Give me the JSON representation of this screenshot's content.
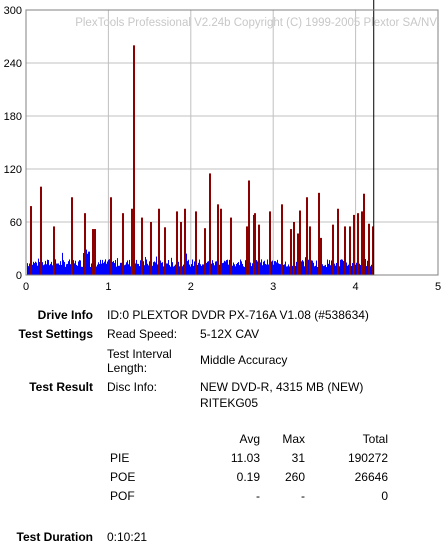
{
  "chart_data": {
    "type": "bar",
    "watermark": "PlexTools Professional V2.24b Copyright (C) 1999-2005 Plextor SA/NV",
    "xlim": [
      0,
      5
    ],
    "ylim": [
      0,
      300
    ],
    "x_ticks": [
      "0",
      "1",
      "2",
      "3",
      "4",
      "5"
    ],
    "y_ticks": [
      "0",
      "60",
      "120",
      "180",
      "240",
      "300"
    ],
    "grid": true,
    "end_marker_x": 4.22,
    "series": [
      {
        "color": "#0000ff",
        "values_summary": "dense PIE bars across 0–4.22, typical 10–22, max ~31"
      },
      {
        "color": "#8b0000",
        "x": [
          0.05,
          0.17,
          0.33,
          0.55,
          0.7,
          0.8,
          0.82,
          1.02,
          1.16,
          1.27,
          1.3,
          1.4,
          1.5,
          1.6,
          1.67,
          1.82,
          1.87,
          1.92,
          2.05,
          2.16,
          2.22,
          2.32,
          2.36,
          2.47,
          2.67,
          2.7,
          2.75,
          2.77,
          2.82,
          2.95,
          3.1,
          3.2,
          3.24,
          3.29,
          3.31,
          3.4,
          3.43,
          3.54,
          3.57,
          3.71,
          3.77,
          3.86,
          3.92,
          3.97,
          4.02,
          4.06,
          4.09,
          4.15,
          4.2
        ],
        "values": [
          78,
          100,
          55,
          88,
          70,
          52,
          52,
          88,
          70,
          75,
          260,
          65,
          60,
          75,
          54,
          72,
          60,
          75,
          72,
          53,
          115,
          80,
          75,
          65,
          55,
          107,
          68,
          70,
          57,
          72,
          80,
          52,
          60,
          47,
          73,
          88,
          55,
          93,
          42,
          57,
          75,
          55,
          55,
          68,
          70,
          72,
          92,
          58,
          55
        ]
      }
    ]
  },
  "info": {
    "drive_info_label": "Drive Info",
    "drive_info_value": "ID:0 PLEXTOR DVDR PX-716A V1.08 (#538634)",
    "test_settings_label": "Test Settings",
    "read_speed_key": "Read Speed:",
    "read_speed_value": "5-12X CAV",
    "interval_key_line1": "Test Interval",
    "interval_key_line2": "Length:",
    "interval_value": "Middle Accuracy",
    "test_result_label": "Test Result",
    "disc_info_key": "Disc Info:",
    "disc_info_line1": "NEW DVD-R, 4315 MB (NEW)",
    "disc_info_line2": "RITEKG05",
    "test_duration_label": "Test Duration",
    "test_duration_value": "0:10:21"
  },
  "results": {
    "headers": {
      "avg": "Avg",
      "max": "Max",
      "total": "Total"
    },
    "rows": [
      {
        "name": "PIE",
        "avg": "11.03",
        "max": "31",
        "total": "190272"
      },
      {
        "name": "POE",
        "avg": "0.19",
        "max": "260",
        "total": "26646"
      },
      {
        "name": "POF",
        "avg": "-",
        "max": "-",
        "total": "0"
      }
    ]
  }
}
